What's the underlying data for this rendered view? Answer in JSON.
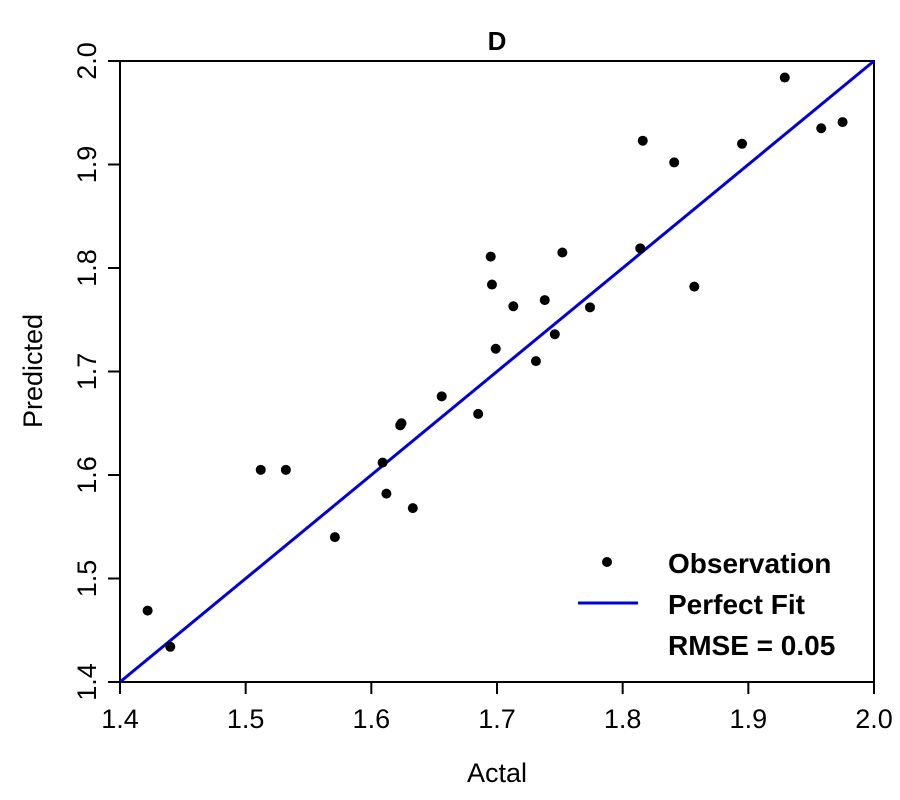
{
  "chart_data": {
    "type": "scatter",
    "title": "D",
    "xlabel": "Actal",
    "ylabel": "Predicted",
    "xlim": [
      1.4,
      2.0
    ],
    "ylim": [
      1.4,
      2.0
    ],
    "x_ticks": [
      "1.4",
      "1.5",
      "1.6",
      "1.7",
      "1.8",
      "1.9",
      "2.0"
    ],
    "y_ticks": [
      "1.4",
      "1.5",
      "1.6",
      "1.7",
      "1.8",
      "1.9",
      "2.0"
    ],
    "grid": false,
    "legend_position": "bottom-right",
    "series": [
      {
        "name": "Observation",
        "kind": "points",
        "color": "#000000",
        "points": [
          [
            1.422,
            1.469
          ],
          [
            1.44,
            1.434
          ],
          [
            1.512,
            1.605
          ],
          [
            1.532,
            1.605
          ],
          [
            1.571,
            1.54
          ],
          [
            1.609,
            1.612
          ],
          [
            1.612,
            1.582
          ],
          [
            1.623,
            1.648
          ],
          [
            1.624,
            1.65
          ],
          [
            1.633,
            1.568
          ],
          [
            1.656,
            1.676
          ],
          [
            1.685,
            1.659
          ],
          [
            1.695,
            1.811
          ],
          [
            1.696,
            1.784
          ],
          [
            1.699,
            1.722
          ],
          [
            1.713,
            1.763
          ],
          [
            1.731,
            1.71
          ],
          [
            1.738,
            1.769
          ],
          [
            1.746,
            1.736
          ],
          [
            1.752,
            1.815
          ],
          [
            1.774,
            1.762
          ],
          [
            1.814,
            1.819
          ],
          [
            1.816,
            1.923
          ],
          [
            1.841,
            1.902
          ],
          [
            1.857,
            1.782
          ],
          [
            1.895,
            1.92
          ],
          [
            1.929,
            1.984
          ],
          [
            1.958,
            1.935
          ],
          [
            1.975,
            1.941
          ]
        ]
      },
      {
        "name": "Perfect Fit",
        "kind": "line",
        "color": "#0000dd",
        "points": [
          [
            1.4,
            1.4
          ],
          [
            2.0,
            2.0
          ]
        ]
      }
    ],
    "annotation": "RMSE = 0.05"
  }
}
